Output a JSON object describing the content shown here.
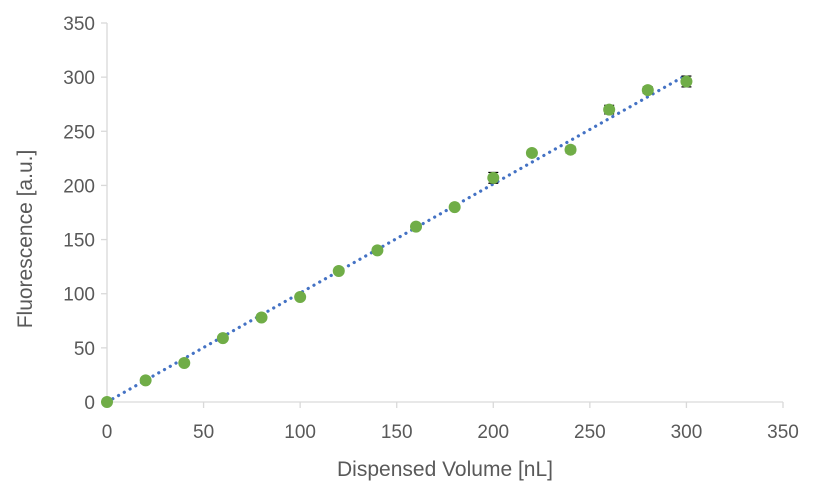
{
  "chart_data": {
    "type": "scatter",
    "title": "",
    "xlabel": "Dispensed Volume [nL]",
    "ylabel": "Fluorescence [a.u.]",
    "xlim": [
      0,
      350
    ],
    "ylim": [
      0,
      350
    ],
    "xticks": [
      0,
      50,
      100,
      150,
      200,
      250,
      300,
      350
    ],
    "yticks": [
      0,
      50,
      100,
      150,
      200,
      250,
      300,
      350
    ],
    "grid": false,
    "legend": "none",
    "series": [
      {
        "x": [
          0,
          20,
          40,
          60,
          80,
          100,
          120,
          140,
          160,
          180,
          200,
          220,
          240,
          260,
          280,
          300
        ],
        "y": [
          0,
          20,
          36,
          59,
          78,
          97,
          121,
          140,
          162,
          180,
          207,
          230,
          233,
          270,
          288,
          296
        ],
        "yerr": [
          1,
          1.5,
          2,
          1.5,
          2,
          1.5,
          2,
          1.5,
          2,
          1.5,
          5,
          2,
          3,
          4,
          3,
          5
        ],
        "color": "#70AD47",
        "errorbar_color": "#000000"
      }
    ],
    "trendline": {
      "type": "linear",
      "style": "dotted",
      "color": "#4472C4",
      "x": [
        0,
        300
      ],
      "y": [
        0,
        302
      ]
    },
    "axis_color": "#D9D9D9"
  }
}
